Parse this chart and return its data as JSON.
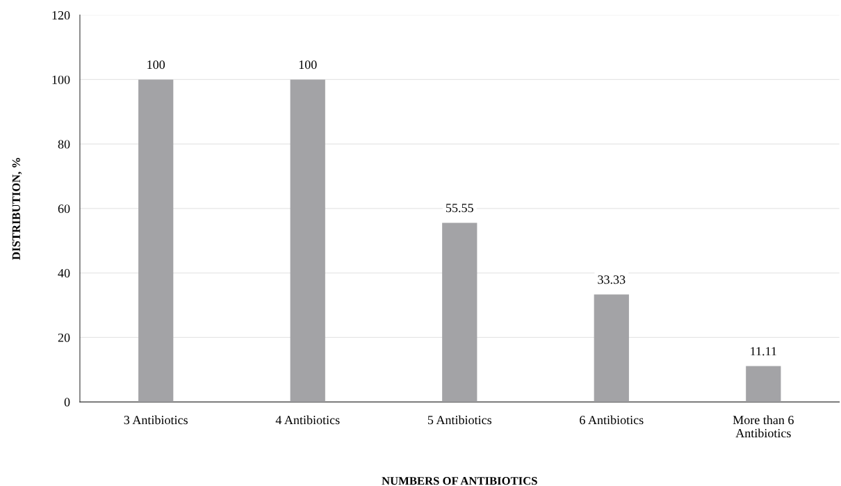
{
  "chart_data": {
    "type": "bar",
    "xlabel": "NUMBERS OF ANTIBIOTICS",
    "ylabel": "DISTRIBUTION, %",
    "categories": [
      "3 Antibiotics",
      "4 Antibiotics",
      "5 Antibiotics",
      "6 Antibiotics",
      "More than 6\nAntibiotics"
    ],
    "values": [
      100,
      100,
      55.55,
      33.33,
      11.11
    ],
    "color": "#a3a3a6",
    "ylim": [
      0,
      120
    ],
    "yticks": [
      0,
      20,
      40,
      60,
      80,
      100,
      120
    ],
    "grid": "y",
    "data_labels": true
  }
}
